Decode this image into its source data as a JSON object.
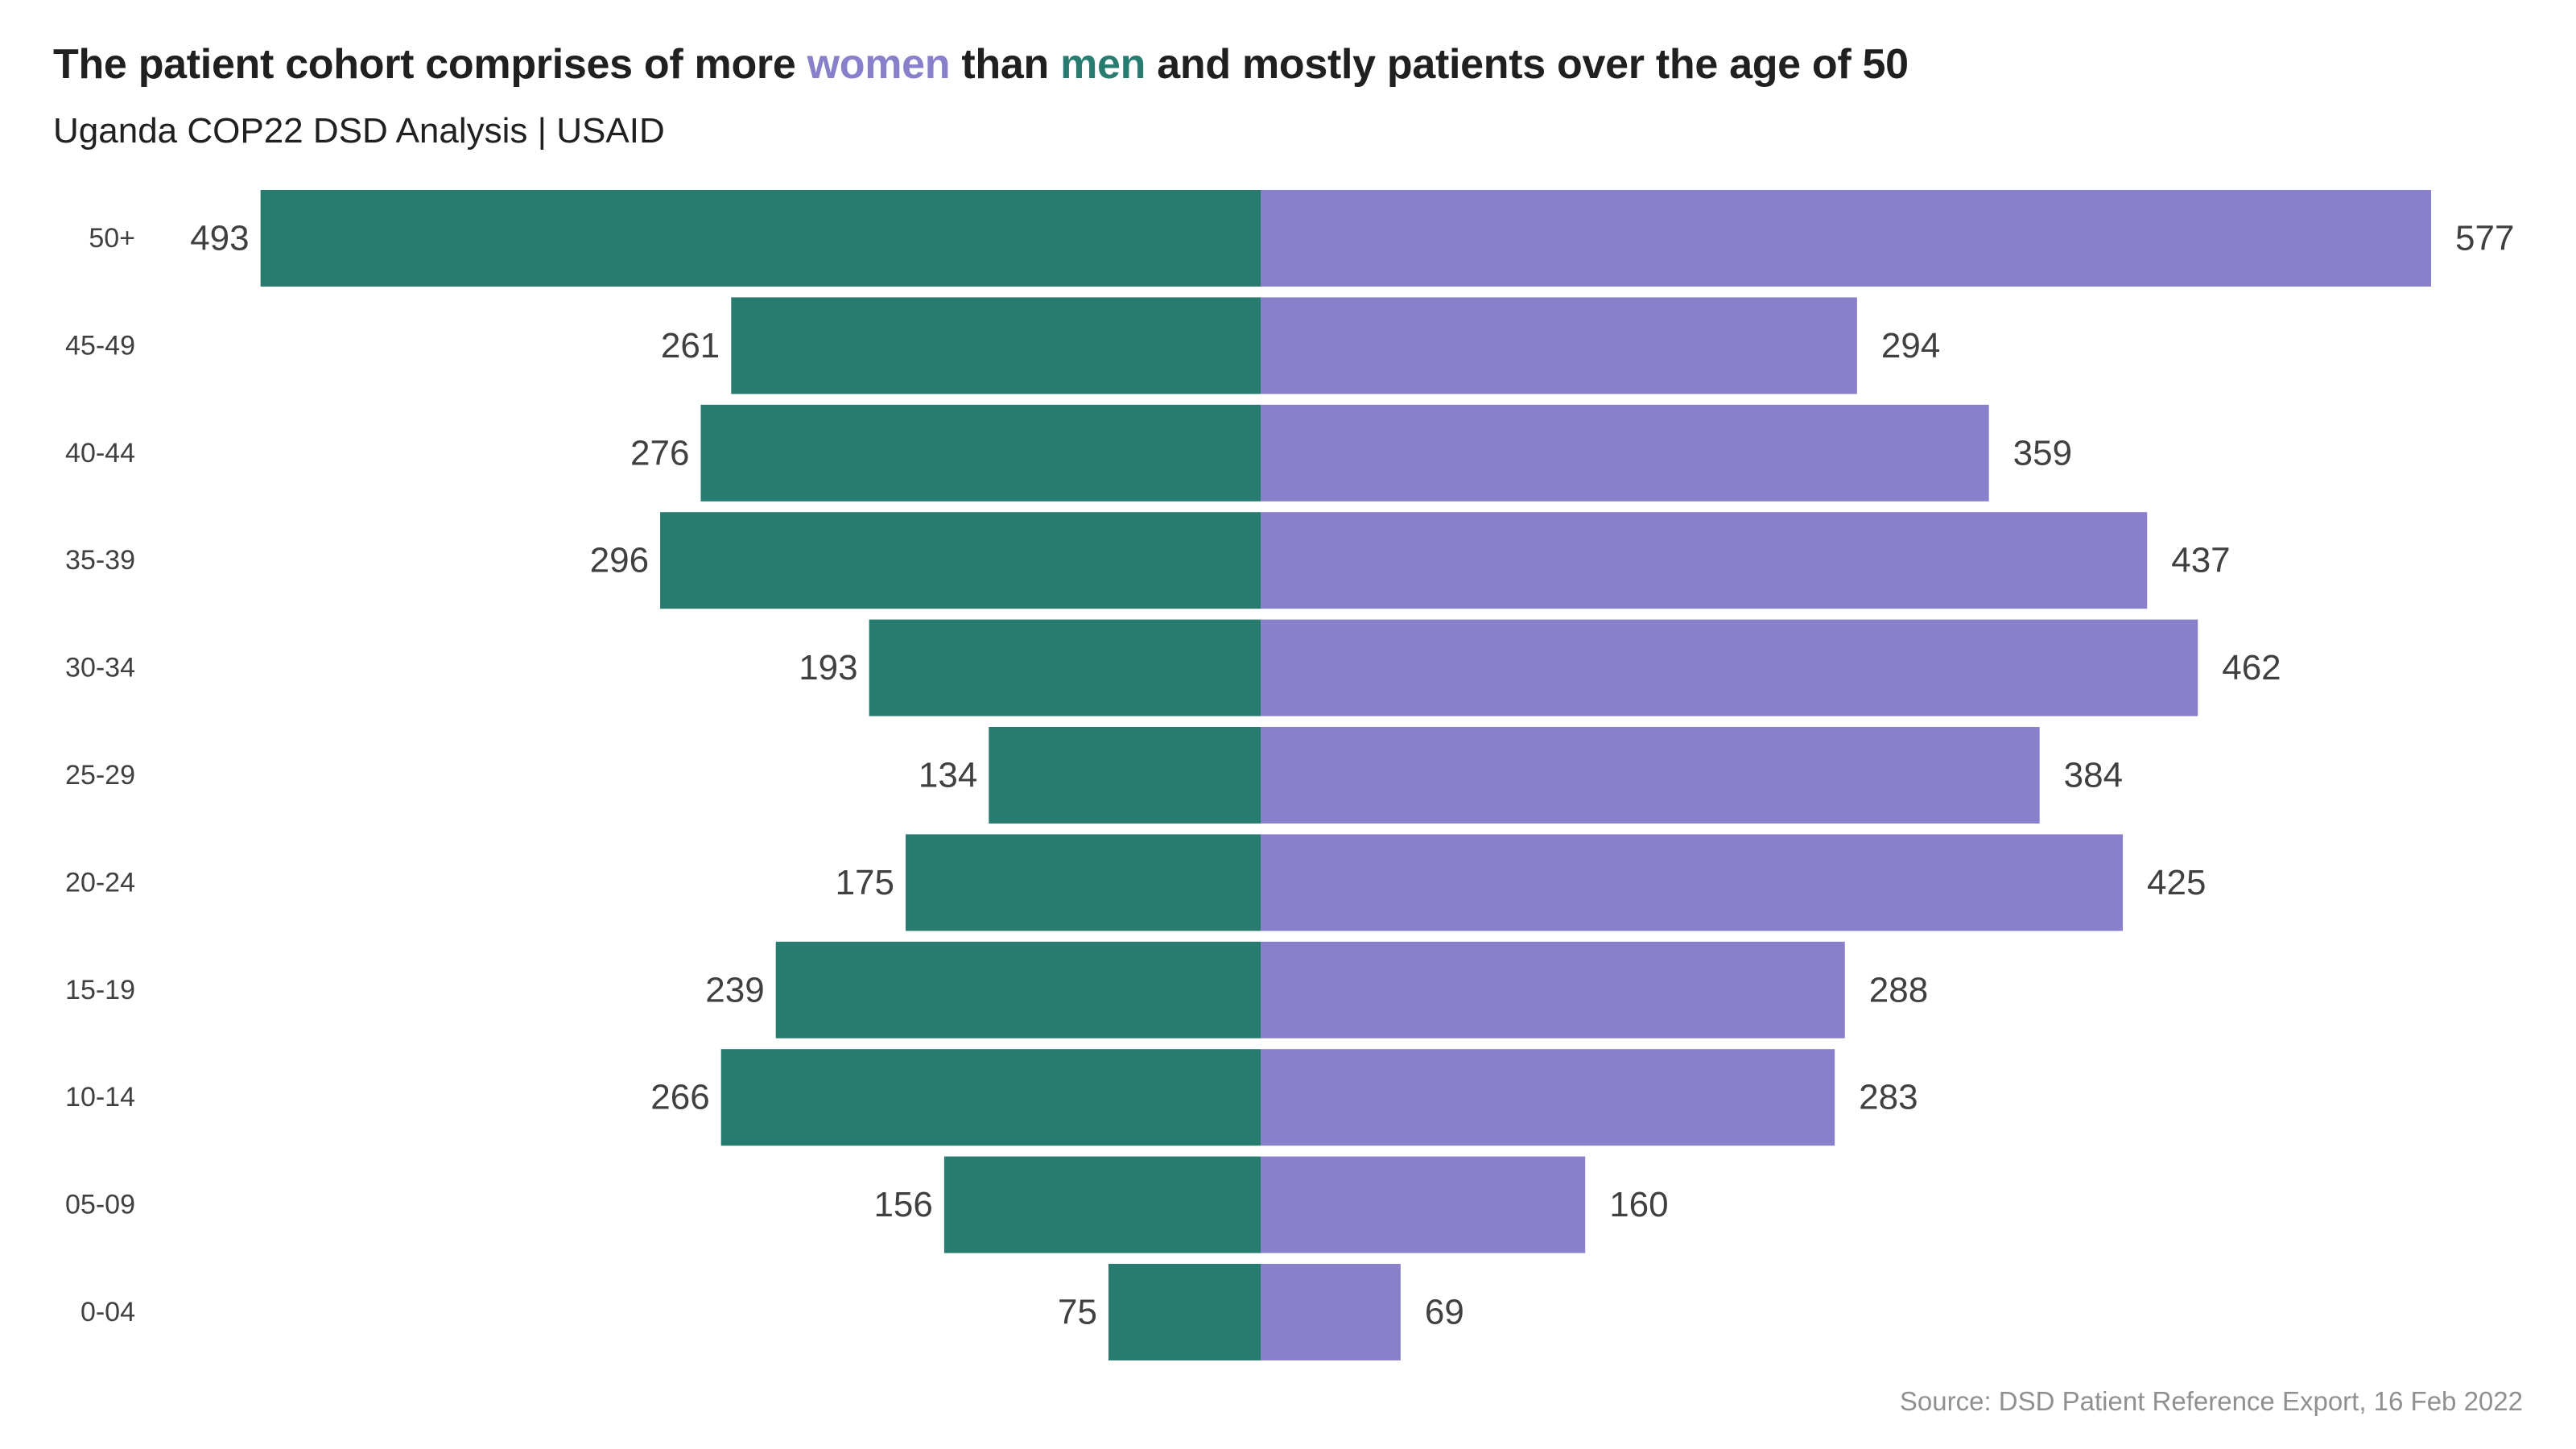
{
  "title": {
    "part1": "The patient cohort comprises of more ",
    "women": "women",
    "part2": " than ",
    "men": "men",
    "part3": " and mostly patients over the age of 50"
  },
  "subtitle": "Uganda COP22 DSD Analysis | USAID",
  "caption": "Source: DSD Patient Reference Export, 16 Feb 2022",
  "colors": {
    "men": "#287c6f",
    "women": "#8980cb",
    "text": "#202020",
    "label": "#404040",
    "caption": "#909090"
  },
  "chart_data": {
    "type": "bar",
    "orientation": "horizontal-diverging",
    "categories": [
      "50+",
      "45-49",
      "40-44",
      "35-39",
      "30-34",
      "25-29",
      "20-24",
      "15-19",
      "10-14",
      "05-09",
      "0-04"
    ],
    "series": [
      {
        "values": [
          493,
          261,
          276,
          296,
          193,
          134,
          175,
          239,
          266,
          156,
          75
        ],
        "color": "#287c6f",
        "side": "left"
      },
      {
        "values": [
          577,
          294,
          359,
          437,
          462,
          384,
          425,
          288,
          283,
          160,
          69
        ],
        "color": "#8980cb",
        "side": "right"
      }
    ],
    "xlabel": "",
    "ylabel": "",
    "grid": false,
    "data_labels": true
  }
}
